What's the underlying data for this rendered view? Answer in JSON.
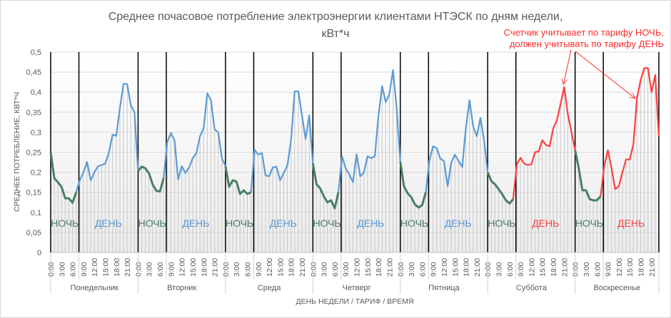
{
  "chart_data": {
    "type": "line",
    "title": "Среднее почасовое потребление электроэнергии клиентами НТЭСК по дням недели, кВт*ч",
    "title_lines": [
      "Среднее  почасовое  потребление  электроэнергии  клиентами  НТЭСК  по  дням  недели,",
      "кВт*ч"
    ],
    "xlabel": "ДЕНЬ НЕДЕЛИ / ТАРИФ / ВРЕМЯ",
    "ylabel": "СРЕДНЕЕ ПОТРЕБЛЕНИЕ, КВТ*Ч",
    "ylim": [
      0,
      0.5
    ],
    "yticks": [
      "0",
      "0,05",
      "0,1",
      "0,15",
      "0,2",
      "0,25",
      "0,3",
      "0,35",
      "0,4",
      "0,45",
      "0,5"
    ],
    "hour_ticks": [
      "0:00",
      "3:00",
      "6:00",
      "9:00",
      "12:00",
      "15:00",
      "18:00",
      "21:00"
    ],
    "grid": true,
    "night_hours": 8,
    "colors": {
      "night": "#4a7f64",
      "day_ok": "#5b9bd5",
      "day_wrong": "#ff3f3f",
      "grid": "#d9d9d9"
    },
    "annotation": {
      "lines": [
        "Счетчик учитывает по тарифу НОЧЬ,",
        "должен учитывать по тарифу ДЕНЬ"
      ],
      "color": "#ff2b2b",
      "targets": [
        {
          "day": 5,
          "hour": 21
        },
        {
          "day": 6,
          "hour": 17
        }
      ]
    },
    "days": [
      {
        "name": "Понедельник",
        "night_label": "НОЧЬ",
        "day_label": "ДЕНЬ",
        "day_color": "#5b9bd5",
        "values": [
          0.25,
          0.185,
          0.175,
          0.163,
          0.135,
          0.135,
          0.124,
          0.15,
          0.18,
          0.2,
          0.226,
          0.18,
          0.2,
          0.215,
          0.218,
          0.222,
          0.25,
          0.294,
          0.291,
          0.36,
          0.421,
          0.42,
          0.367,
          0.35
        ]
      },
      {
        "name": "Вторник",
        "night_label": "НОЧЬ",
        "day_label": "ДЕНЬ",
        "day_color": "#5b9bd5",
        "values": [
          0.203,
          0.214,
          0.21,
          0.197,
          0.17,
          0.154,
          0.152,
          0.185,
          0.275,
          0.298,
          0.28,
          0.182,
          0.215,
          0.198,
          0.212,
          0.235,
          0.248,
          0.29,
          0.31,
          0.397,
          0.38,
          0.307,
          0.3,
          0.235
        ]
      },
      {
        "name": "Среда",
        "night_label": "НОЧЬ",
        "day_label": "ДЕНЬ",
        "day_color": "#5b9bd5",
        "values": [
          0.215,
          0.164,
          0.18,
          0.177,
          0.146,
          0.155,
          0.146,
          0.15,
          0.256,
          0.244,
          0.248,
          0.192,
          0.19,
          0.212,
          0.214,
          0.18,
          0.198,
          0.217,
          0.28,
          0.402,
          0.402,
          0.342,
          0.283,
          0.342
        ]
      },
      {
        "name": "Четверг",
        "night_label": "НОЧЬ",
        "day_label": "ДЕНЬ",
        "day_color": "#5b9bd5",
        "values": [
          0.222,
          0.17,
          0.16,
          0.14,
          0.125,
          0.13,
          0.11,
          0.15,
          0.24,
          0.21,
          0.195,
          0.175,
          0.245,
          0.19,
          0.2,
          0.24,
          0.235,
          0.24,
          0.34,
          0.415,
          0.375,
          0.395,
          0.455,
          0.36
        ]
      },
      {
        "name": "Пятница",
        "night_label": "НОЧЬ",
        "day_label": "ДЕНЬ",
        "day_color": "#5b9bd5",
        "values": [
          0.226,
          0.165,
          0.148,
          0.138,
          0.12,
          0.112,
          0.118,
          0.15,
          0.23,
          0.265,
          0.26,
          0.234,
          0.228,
          0.165,
          0.225,
          0.244,
          0.228,
          0.213,
          0.31,
          0.38,
          0.315,
          0.29,
          0.336,
          0.28
        ]
      },
      {
        "name": "Суббота",
        "night_label": "НОЧЬ",
        "day_label": "ДЕНЬ",
        "day_color": "#ff3f3f",
        "values": [
          0.2,
          0.178,
          0.17,
          0.158,
          0.145,
          0.13,
          0.122,
          0.133,
          0.22,
          0.236,
          0.222,
          0.218,
          0.22,
          0.25,
          0.252,
          0.28,
          0.268,
          0.265,
          0.31,
          0.33,
          0.37,
          0.413,
          0.345,
          0.3
        ]
      },
      {
        "name": "Воскресенье",
        "night_label": "НОЧЬ",
        "day_label": "ДЕНЬ",
        "day_color": "#ff3f3f",
        "values": [
          0.255,
          0.21,
          0.155,
          0.155,
          0.133,
          0.13,
          0.13,
          0.14,
          0.215,
          0.255,
          0.21,
          0.158,
          0.165,
          0.2,
          0.232,
          0.232,
          0.27,
          0.385,
          0.43,
          0.46,
          0.46,
          0.4,
          0.443,
          0.29
        ]
      }
    ]
  }
}
